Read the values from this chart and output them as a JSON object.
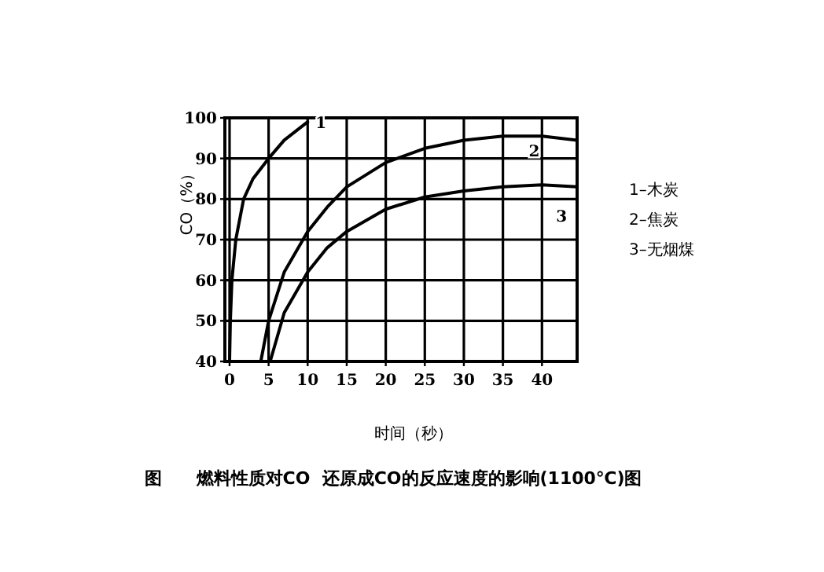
{
  "chart_data": {
    "type": "line",
    "title": "图　　燃料性质对CO  还原成CO的反应速度的影响(1100℃)图",
    "xlabel": "时间（秒）",
    "ylabel": "CO（%）",
    "xlim": [
      -0.6,
      44.5
    ],
    "ylim": [
      40,
      100
    ],
    "xticks": [
      0,
      5,
      10,
      15,
      20,
      25,
      30,
      35,
      40
    ],
    "yticks": [
      40,
      50,
      60,
      70,
      80,
      90,
      100
    ],
    "grid": true,
    "line_style": "solid",
    "series": [
      {
        "name": "1",
        "color": "#000000",
        "x": [
          0,
          0.1,
          0.3,
          0.8,
          1.8,
          3,
          5,
          7,
          9,
          10
        ],
        "values": [
          40,
          50,
          60,
          70,
          80,
          85,
          90,
          94.5,
          97.5,
          99
        ]
      },
      {
        "name": "2",
        "color": "#000000",
        "x": [
          4,
          5,
          7,
          10,
          12.5,
          15,
          20,
          25,
          30,
          35,
          40,
          44.5
        ],
        "values": [
          40,
          50,
          62,
          72,
          78,
          83,
          89,
          92.5,
          94.5,
          95.5,
          95.5,
          94.5
        ]
      },
      {
        "name": "3",
        "color": "#000000",
        "x": [
          5.2,
          7,
          10,
          12.5,
          15,
          20,
          25,
          30,
          35,
          40,
          44.5
        ],
        "values": [
          40,
          52,
          62,
          68,
          72,
          77.5,
          80.5,
          82,
          83,
          83.5,
          83
        ]
      }
    ],
    "annotations": [
      "1–木炭",
      "2–焦炭",
      "3–无烟煤"
    ]
  }
}
